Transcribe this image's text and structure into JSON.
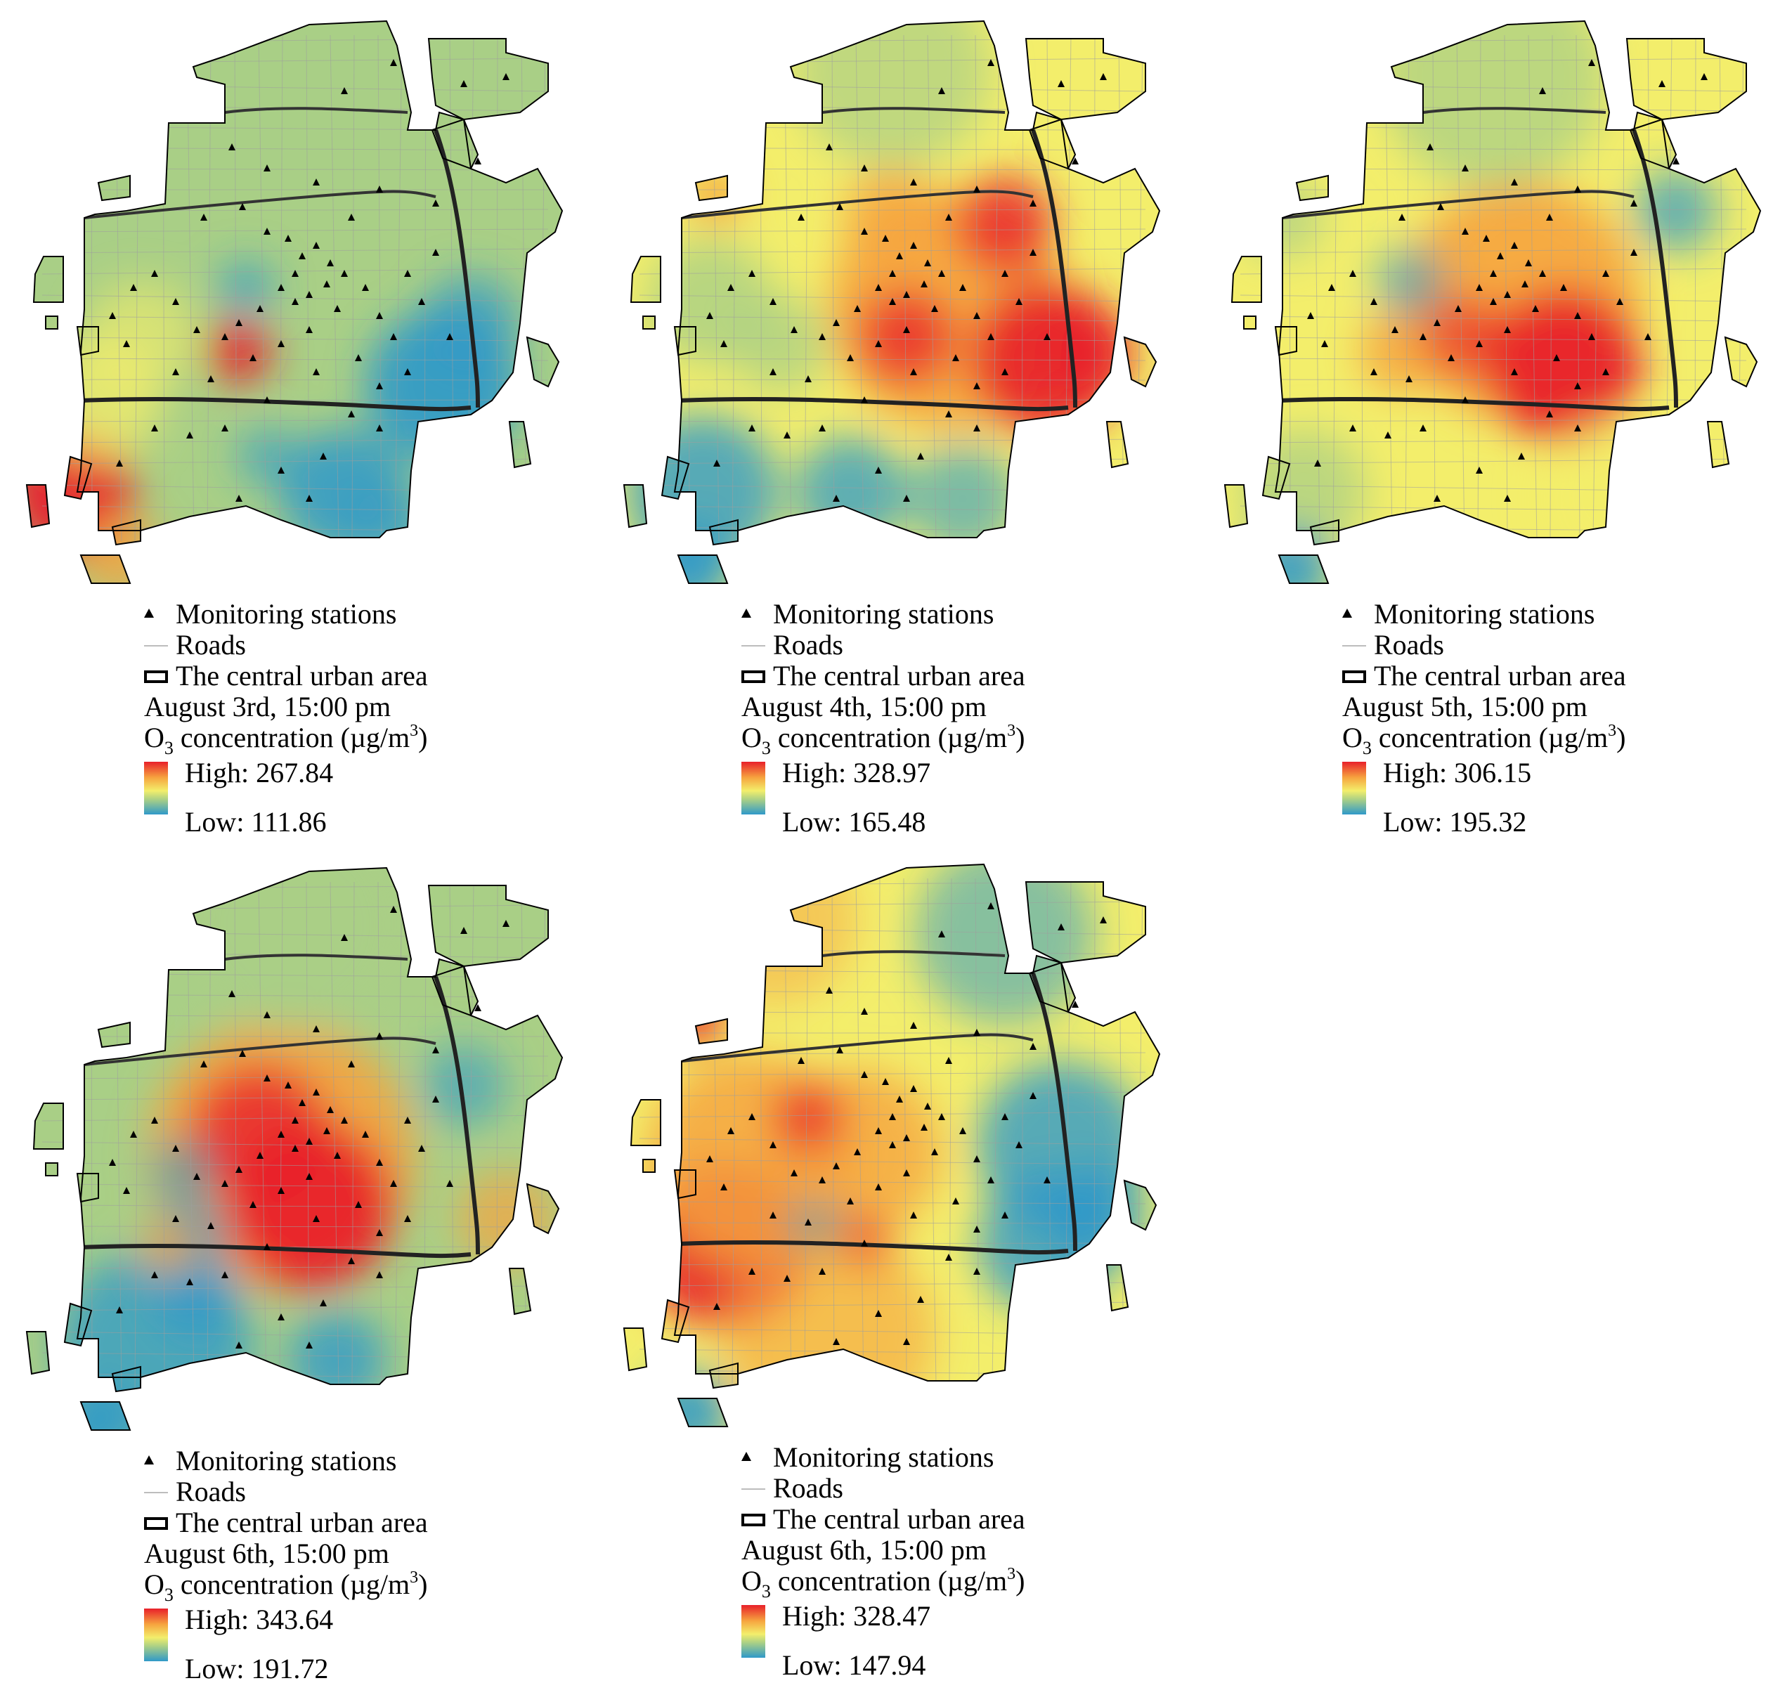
{
  "legend_labels": {
    "stations": "Monitoring stations",
    "roads": "Roads",
    "area": "The central urban area",
    "concentration_prefix": "O",
    "concentration_sub": "3",
    "concentration_mid": " concentration (µg/m",
    "concentration_sup": "3",
    "concentration_suffix": ")"
  },
  "colors": {
    "high": "#e8202a",
    "orange": "#f6a43f",
    "yellow": "#f3ee6b",
    "green": "#a9cf86",
    "low": "#2f99c9",
    "boundary": "#000000",
    "roads": "#9e9e9e"
  },
  "panels": [
    {
      "date": "August 3rd, 15:00 pm",
      "high": "High: 267.84",
      "low": "Low: 111.86",
      "theme": "low"
    },
    {
      "date": "August 4th, 15:00 pm",
      "high": "High: 328.97",
      "low": "Low: 165.48",
      "theme": "east"
    },
    {
      "date": "August 5th, 15:00 pm",
      "high": "High: 306.15",
      "low": "Low: 195.32",
      "theme": "center"
    },
    {
      "date": "August 6th, 15:00 pm",
      "high": "High: 343.64",
      "low": "Low: 191.72",
      "theme": "core"
    },
    {
      "date": "August 6th, 15:00 pm",
      "high": "High: 328.47",
      "low": "Low: 147.94",
      "theme": "west"
    }
  ]
}
